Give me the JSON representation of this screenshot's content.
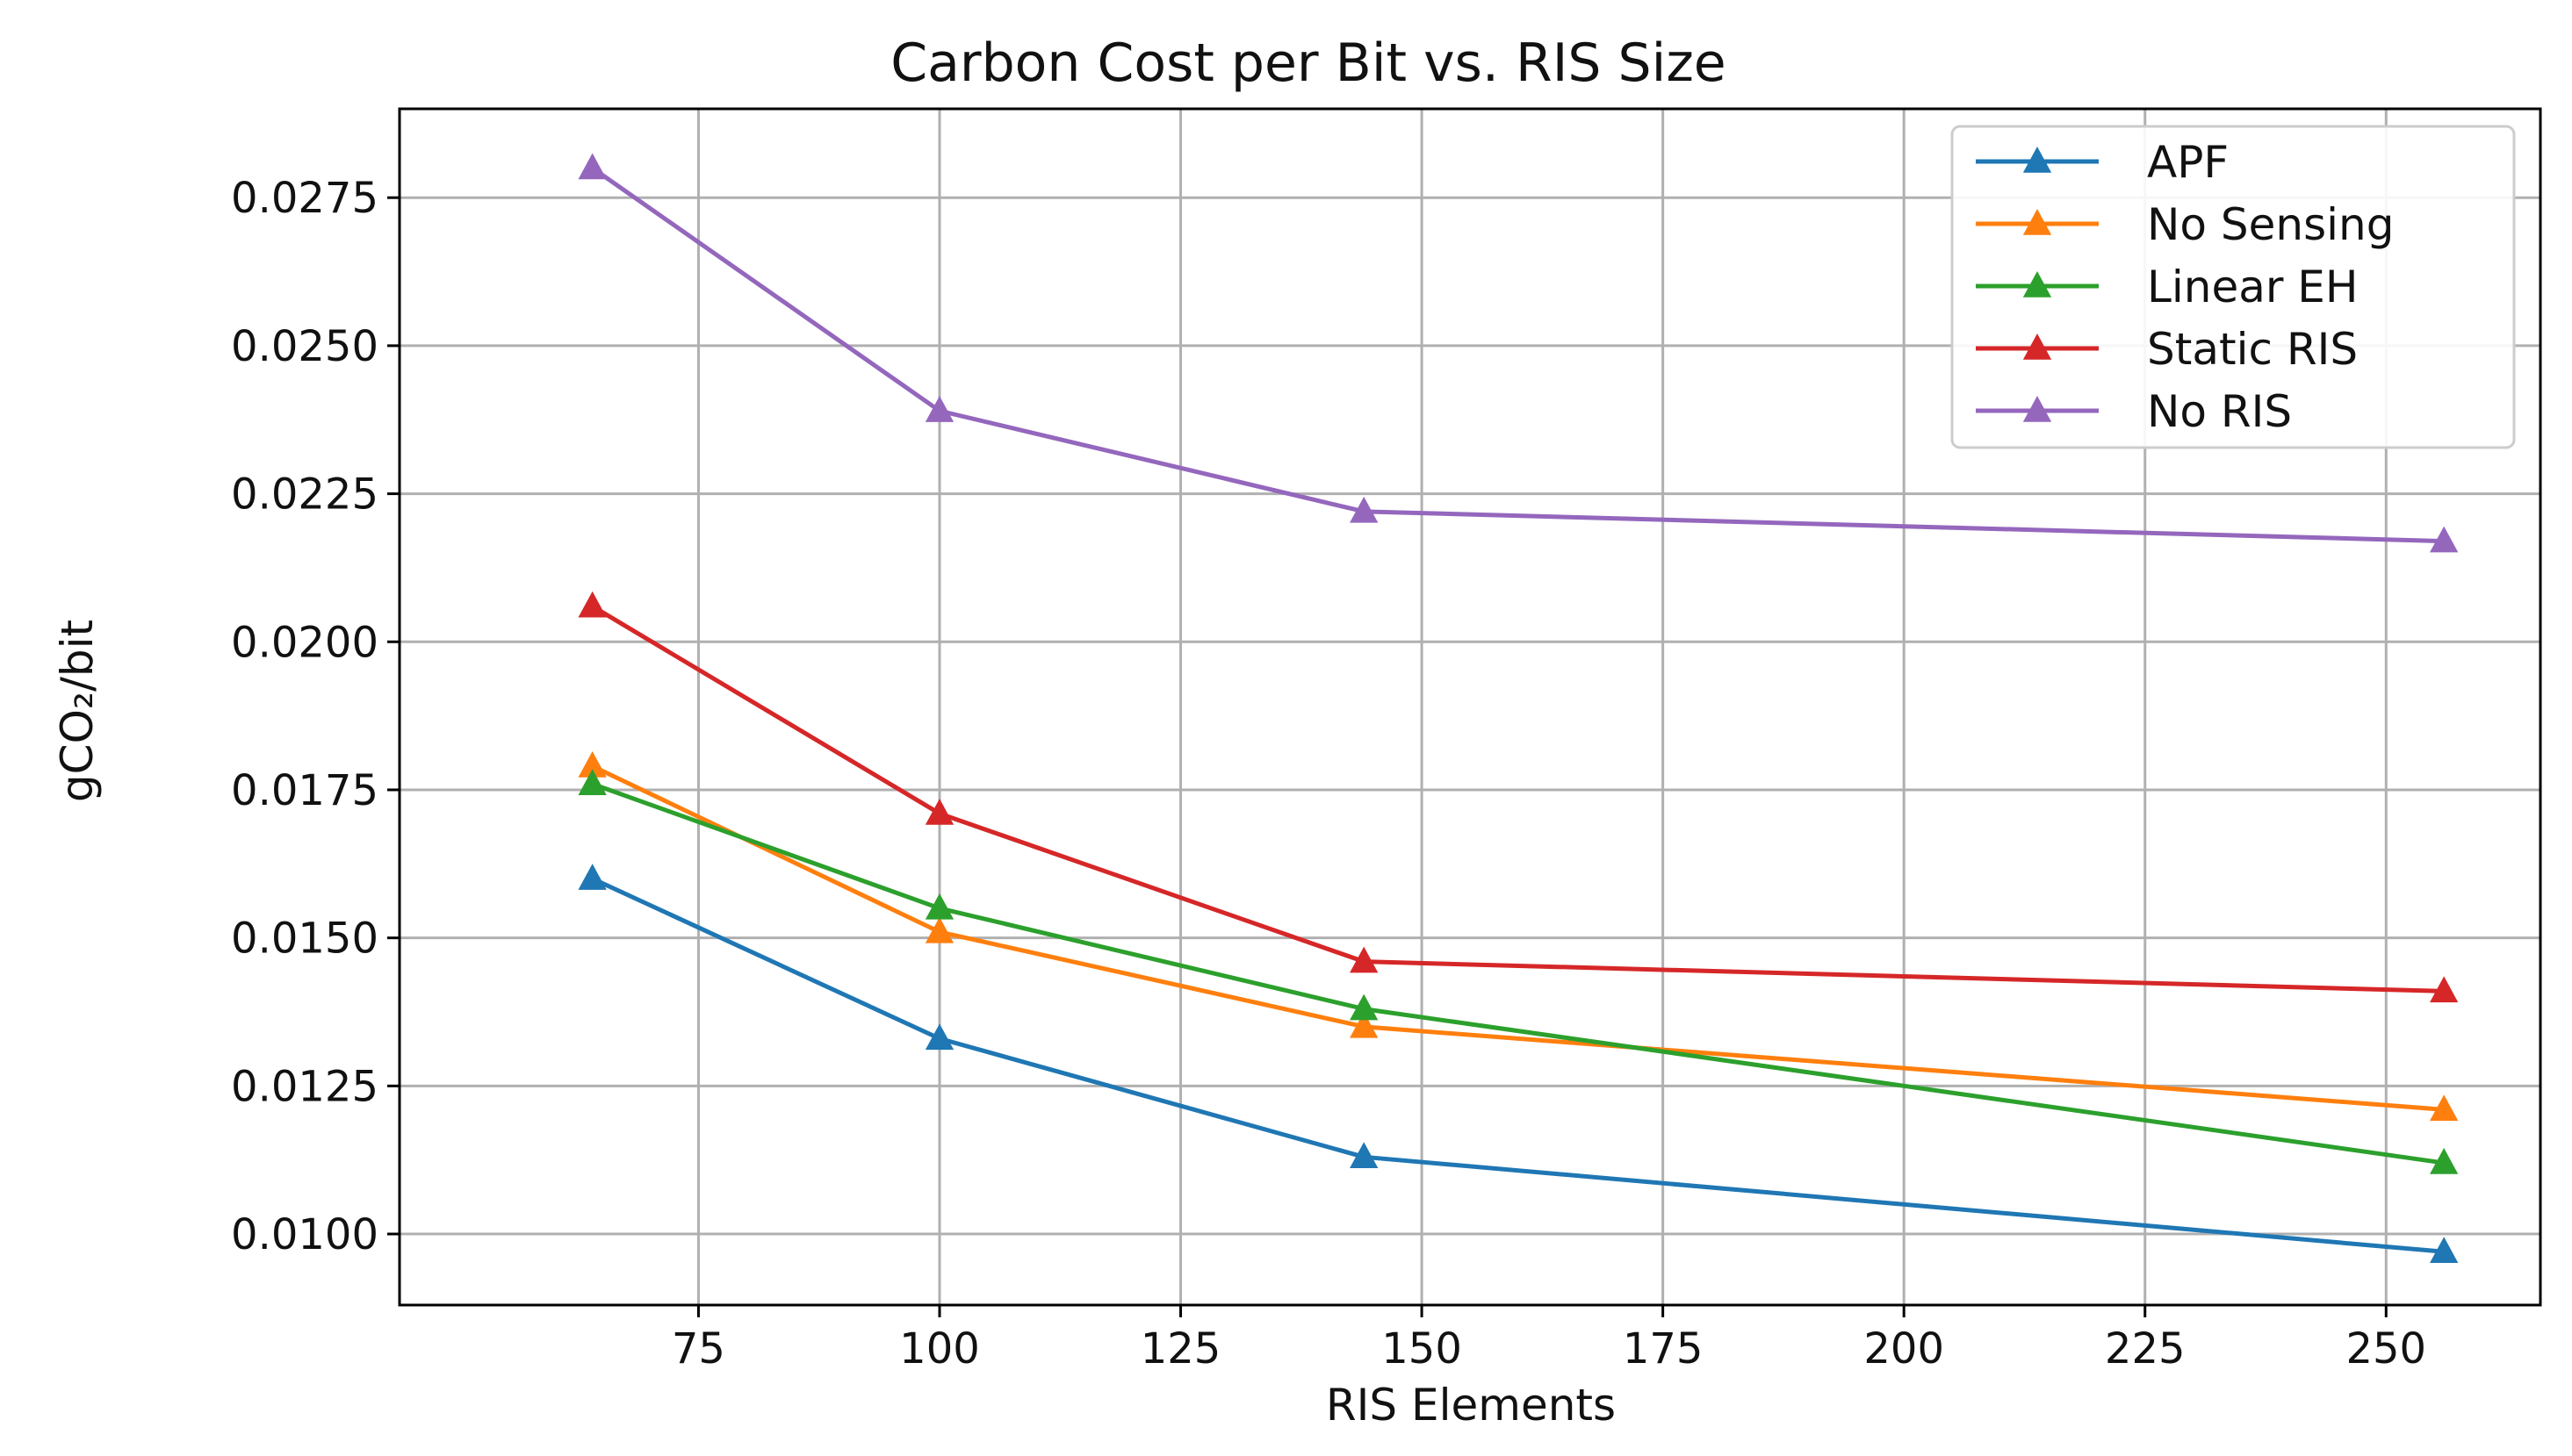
{
  "chart_data": {
    "type": "line",
    "title": "Carbon Cost per Bit vs. RIS Size",
    "xlabel": "RIS Elements",
    "ylabel": "gCO₂/bit",
    "xlim": [
      44,
      266
    ],
    "ylim": [
      0.0088,
      0.029
    ],
    "xticks": [
      75,
      100,
      125,
      150,
      175,
      200,
      225,
      250
    ],
    "yticks": [
      0.01,
      0.0125,
      0.015,
      0.0175,
      0.02,
      0.0225,
      0.025,
      0.0275
    ],
    "ytick_labels": [
      "0.0100",
      "0.0125",
      "0.0150",
      "0.0175",
      "0.0200",
      "0.0225",
      "0.0250",
      "0.0275"
    ],
    "grid": true,
    "legend_position": "top-right",
    "marker": "triangle-up",
    "x": [
      64,
      100,
      144,
      256
    ],
    "series": [
      {
        "name": "APF",
        "color": "#1f77b4",
        "values": [
          0.016,
          0.0133,
          0.0113,
          0.0097
        ]
      },
      {
        "name": "No Sensing",
        "color": "#ff7f0e",
        "values": [
          0.0179,
          0.0151,
          0.0135,
          0.0121
        ]
      },
      {
        "name": "Linear EH",
        "color": "#2ca02c",
        "values": [
          0.0176,
          0.0155,
          0.0138,
          0.0112
        ]
      },
      {
        "name": "Static RIS",
        "color": "#d62728",
        "values": [
          0.0206,
          0.0171,
          0.0146,
          0.0141
        ]
      },
      {
        "name": "No RIS",
        "color": "#9467bd",
        "values": [
          0.028,
          0.0239,
          0.0222,
          0.0217
        ]
      }
    ]
  }
}
